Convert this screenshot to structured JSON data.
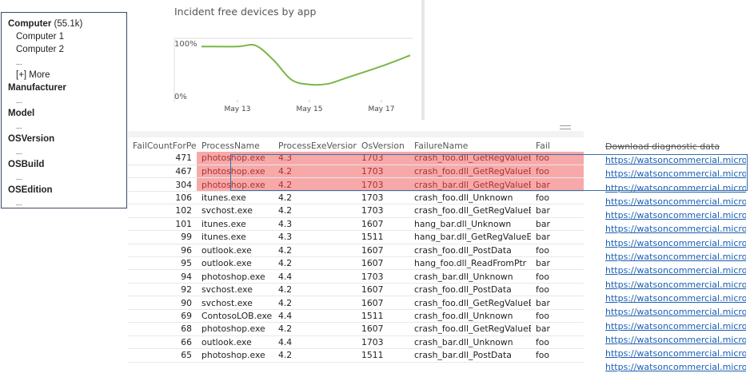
{
  "filter_panel": {
    "groups": [
      {
        "label": "Computer",
        "count": "(55.1k)",
        "items": [
          "Computer 1",
          "Computer 2"
        ],
        "ellipsis": "...",
        "more": "[+] More"
      },
      {
        "label": "Manufacturer",
        "ellipsis": "..."
      },
      {
        "label": "Model",
        "ellipsis": "..."
      },
      {
        "label": "OSVersion",
        "ellipsis": "..."
      },
      {
        "label": "OSBuild",
        "ellipsis": "..."
      },
      {
        "label": "OSEdition",
        "ellipsis": "..."
      }
    ]
  },
  "chart_data": {
    "type": "line",
    "title": "Incident free devices by app",
    "y_ticks": [
      "100%",
      "0%"
    ],
    "ylim": [
      0,
      100
    ],
    "x_ticks": [
      "May 13",
      "May 15",
      "May 17"
    ],
    "x": [
      "May 12",
      "May 13",
      "May 13.5",
      "May 14",
      "May 14.5",
      "May 15",
      "May 15.5",
      "May 16",
      "May 17",
      "May 17.8"
    ],
    "values": [
      95,
      95,
      97,
      69,
      31,
      22,
      23,
      34,
      57,
      78
    ],
    "color": "#7ab648",
    "grid": false
  },
  "table": {
    "columns": [
      "FailCountForPeriod",
      "ProcessName",
      "ProcessExeVersion",
      "OsVersion",
      "FailureName",
      "Fail"
    ],
    "sort_icon": "sort-descending-icon",
    "highlight_color": "#f7a9a9",
    "rows": [
      [
        "471",
        "photoshop.exe",
        "4.3",
        "1703",
        "crash_foo.dll_GetRegValueEx",
        "foo"
      ],
      [
        "467",
        "photoshop.exe",
        "4.2",
        "1703",
        "crash_foo.dll_GetRegValueEx",
        "foo"
      ],
      [
        "304",
        "photoshop.exe",
        "4.2",
        "1703",
        "crash_bar.dll_GetRegValueEx",
        "bar"
      ],
      [
        "106",
        "itunes.exe",
        "4.2",
        "1703",
        "crash_foo.dll_Unknown",
        "foo"
      ],
      [
        "102",
        "svchost.exe",
        "4.2",
        "1703",
        "crash_foo.dll_GetRegValueEx",
        "bar"
      ],
      [
        "101",
        "itunes.exe",
        "4.3",
        "1607",
        "hang_bar.dll_Unknown",
        "bar"
      ],
      [
        "99",
        "itunes.exe",
        "4.3",
        "1511",
        "hang_bar.dll_GetRegValueEx",
        "bar"
      ],
      [
        "96",
        "outlook.exe",
        "4.2",
        "1607",
        "crash_foo.dll_PostData",
        "foo"
      ],
      [
        "95",
        "outlook.exe",
        "4.2",
        "1607",
        "hang_foo.dll_ReadFromPtr",
        "bar"
      ],
      [
        "94",
        "photoshop.exe",
        "4.4",
        "1703",
        "crash_bar.dll_Unknown",
        "foo"
      ],
      [
        "92",
        "svchost.exe",
        "4.2",
        "1607",
        "crash_foo.dll_PostData",
        "foo"
      ],
      [
        "90",
        "svchost.exe",
        "4.2",
        "1607",
        "crash_foo.dll_GetRegValueEx",
        "bar"
      ],
      [
        "69",
        "ContosoLOB.exe",
        "4.4",
        "1511",
        "crash_foo.dll_Unknown",
        "foo"
      ],
      [
        "68",
        "photoshop.exe",
        "4.2",
        "1607",
        "crash_foo.dll_GetRegValueEx",
        "bar"
      ],
      [
        "66",
        "outlook.exe",
        "4.4",
        "1703",
        "crash_bar.dll_Unknown",
        "foo"
      ],
      [
        "65",
        "photoshop.exe",
        "4.2",
        "1511",
        "crash_bar.dll_PostData",
        "foo"
      ]
    ],
    "highlighted_rows": [
      0,
      1,
      2
    ]
  },
  "links": {
    "header": "Download diagnostic data",
    "text": "https://watsoncommercial.micros...",
    "count": 16
  }
}
